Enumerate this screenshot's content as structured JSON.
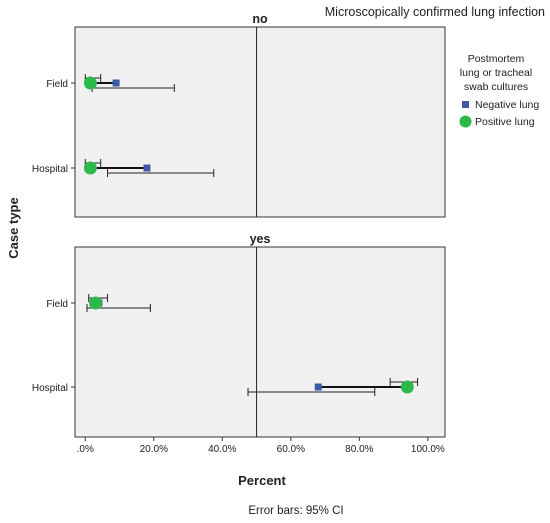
{
  "chart_data": {
    "type": "scatter",
    "title": "Microscopically confirmed lung infection",
    "xlabel": "Percent",
    "ylabel": "Case type",
    "footnote": "Error bars: 95% CI",
    "xlim": [
      -3,
      105
    ],
    "x_ticks": [
      0,
      20,
      40,
      60,
      80,
      100
    ],
    "x_tick_labels": [
      ".0%",
      "20.0%",
      "40.0%",
      "60.0%",
      "80.0%",
      "100.0%"
    ],
    "reference_line_x": 50,
    "categories": [
      "Field",
      "Hospital"
    ],
    "legend": {
      "title": "Postmortem lung or tracheal swab cultures",
      "placement": "right"
    },
    "series": [
      {
        "name": "Negative lung",
        "marker": "square",
        "color": "#3d5aa8"
      },
      {
        "name": "Positive lung",
        "marker": "circle",
        "color": "#2db84a"
      }
    ],
    "panels": [
      {
        "label": "no",
        "points": [
          {
            "category": "Field",
            "series": "Negative lung",
            "value": 9,
            "ci": [
              2,
              26
            ]
          },
          {
            "category": "Field",
            "series": "Positive lung",
            "value": 1.5,
            "ci": [
              0,
              4.5
            ]
          },
          {
            "category": "Hospital",
            "series": "Negative lung",
            "value": 18,
            "ci": [
              6.5,
              37.5
            ]
          },
          {
            "category": "Hospital",
            "series": "Positive lung",
            "value": 1.5,
            "ci": [
              0,
              4.5
            ]
          }
        ]
      },
      {
        "label": "yes",
        "points": [
          {
            "category": "Field",
            "series": "Negative lung",
            "value": 4,
            "ci": [
              0.5,
              19
            ]
          },
          {
            "category": "Field",
            "series": "Positive lung",
            "value": 3,
            "ci": [
              1,
              6.5
            ]
          },
          {
            "category": "Hospital",
            "series": "Negative lung",
            "value": 68,
            "ci": [
              47.5,
              84.5
            ]
          },
          {
            "category": "Hospital",
            "series": "Positive lung",
            "value": 94,
            "ci": [
              89,
              97
            ]
          }
        ]
      }
    ]
  }
}
